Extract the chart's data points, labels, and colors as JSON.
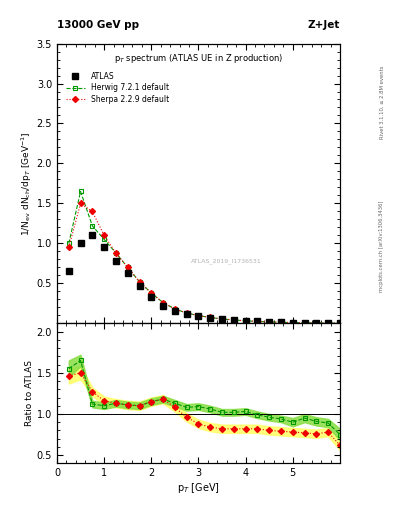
{
  "title_left": "13000 GeV pp",
  "title_right": "Z+Jet",
  "plot_title": "p$_T$ spectrum (ATLAS UE in Z production)",
  "ylabel_main": "1/N$_{\\rm ev}$ dN$_{\\rm ch}$/dp$_T$ [GeV$^{-1}$]",
  "ylabel_ratio": "Ratio to ATLAS",
  "xlabel": "p$_T$ [GeV]",
  "right_label_top": "Rivet 3.1.10, ≥ 2.8M events",
  "right_label_bottom": "mcplots.cern.ch [arXiv:1306.3436]",
  "watermark": "ATLAS_2019_I1736531",
  "xlim": [
    0,
    6
  ],
  "ylim_main": [
    0,
    3.5
  ],
  "ylim_ratio": [
    0.4,
    2.1
  ],
  "atlas_color": "#000000",
  "herwig_color": "#009900",
  "sherpa_color": "#ee0000",
  "atlas_pt": [
    0.25,
    0.5,
    0.75,
    1.0,
    1.25,
    1.5,
    1.75,
    2.0,
    2.25,
    2.5,
    2.75,
    3.0,
    3.25,
    3.5,
    3.75,
    4.0,
    4.25,
    4.5,
    4.75,
    5.0,
    5.25,
    5.5,
    5.75,
    6.0
  ],
  "atlas_val": [
    0.65,
    1.0,
    1.1,
    0.95,
    0.78,
    0.63,
    0.47,
    0.33,
    0.22,
    0.16,
    0.12,
    0.09,
    0.07,
    0.055,
    0.042,
    0.032,
    0.025,
    0.019,
    0.014,
    0.011,
    0.008,
    0.006,
    0.005,
    0.004
  ],
  "herwig_pt": [
    0.25,
    0.5,
    0.75,
    1.0,
    1.25,
    1.5,
    1.75,
    2.0,
    2.25,
    2.5,
    2.75,
    3.0,
    3.25,
    3.5,
    3.75,
    4.0,
    4.25,
    4.5,
    4.75,
    5.0,
    5.25,
    5.5,
    5.75,
    6.0
  ],
  "herwig_val": [
    1.0,
    1.65,
    1.22,
    1.05,
    0.88,
    0.7,
    0.52,
    0.38,
    0.26,
    0.18,
    0.13,
    0.098,
    0.074,
    0.056,
    0.043,
    0.033,
    0.025,
    0.019,
    0.014,
    0.01,
    0.008,
    0.006,
    0.005,
    0.003
  ],
  "sherpa_pt": [
    0.25,
    0.5,
    0.75,
    1.0,
    1.25,
    1.5,
    1.75,
    2.0,
    2.25,
    2.5,
    2.75,
    3.0,
    3.25,
    3.5,
    3.75,
    4.0,
    4.25,
    4.5,
    4.75,
    5.0,
    5.25,
    5.5,
    5.75,
    6.0
  ],
  "sherpa_val": [
    0.95,
    1.5,
    1.4,
    1.1,
    0.88,
    0.7,
    0.52,
    0.38,
    0.26,
    0.18,
    0.13,
    0.098,
    0.074,
    0.056,
    0.043,
    0.033,
    0.025,
    0.019,
    0.014,
    0.01,
    0.008,
    0.006,
    0.005,
    0.003
  ],
  "herwig_ratio": [
    1.55,
    1.65,
    1.12,
    1.1,
    1.13,
    1.11,
    1.1,
    1.15,
    1.18,
    1.13,
    1.08,
    1.09,
    1.06,
    1.02,
    1.02,
    1.03,
    0.99,
    0.96,
    0.94,
    0.9,
    0.95,
    0.91,
    0.89,
    0.75
  ],
  "sherpa_ratio": [
    1.46,
    1.5,
    1.27,
    1.16,
    1.13,
    1.11,
    1.1,
    1.15,
    1.18,
    1.08,
    0.96,
    0.88,
    0.84,
    0.82,
    0.82,
    0.82,
    0.82,
    0.8,
    0.79,
    0.78,
    0.77,
    0.76,
    0.78,
    0.62
  ],
  "herwig_band_y": [
    0.25,
    0.5,
    0.75,
    1.0,
    1.25,
    1.5,
    1.75,
    2.0,
    2.25,
    2.5,
    2.75,
    3.0,
    3.25,
    3.5,
    3.75,
    4.0,
    4.25,
    4.5,
    4.75,
    5.0,
    5.25,
    5.5,
    5.75,
    6.0
  ],
  "herwig_band_upper": [
    1.65,
    1.72,
    1.16,
    1.14,
    1.17,
    1.15,
    1.14,
    1.19,
    1.22,
    1.17,
    1.12,
    1.13,
    1.1,
    1.06,
    1.06,
    1.07,
    1.03,
    1.0,
    0.98,
    0.95,
    1.0,
    0.96,
    0.94,
    0.82
  ],
  "herwig_band_lower": [
    1.45,
    1.58,
    1.08,
    1.06,
    1.09,
    1.07,
    1.06,
    1.11,
    1.14,
    1.09,
    1.04,
    1.05,
    1.02,
    0.98,
    0.98,
    0.99,
    0.95,
    0.92,
    0.9,
    0.85,
    0.9,
    0.86,
    0.84,
    0.68
  ],
  "sherpa_band_y": [
    0.25,
    0.5,
    0.75,
    1.0,
    1.25,
    1.5,
    1.75,
    2.0,
    2.25,
    2.5,
    2.75,
    3.0,
    3.25,
    3.5,
    3.75,
    4.0,
    4.25,
    4.5,
    4.75,
    5.0,
    5.25,
    5.5,
    5.75,
    6.0
  ],
  "sherpa_band_upper": [
    1.55,
    1.58,
    1.32,
    1.21,
    1.18,
    1.16,
    1.15,
    1.2,
    1.23,
    1.13,
    1.01,
    0.93,
    0.89,
    0.87,
    0.87,
    0.87,
    0.87,
    0.85,
    0.84,
    0.83,
    0.82,
    0.81,
    0.83,
    0.68
  ],
  "sherpa_band_lower": [
    1.37,
    1.42,
    1.22,
    1.11,
    1.08,
    1.06,
    1.05,
    1.1,
    1.13,
    1.03,
    0.91,
    0.83,
    0.79,
    0.77,
    0.77,
    0.77,
    0.77,
    0.75,
    0.74,
    0.73,
    0.72,
    0.71,
    0.73,
    0.56
  ]
}
